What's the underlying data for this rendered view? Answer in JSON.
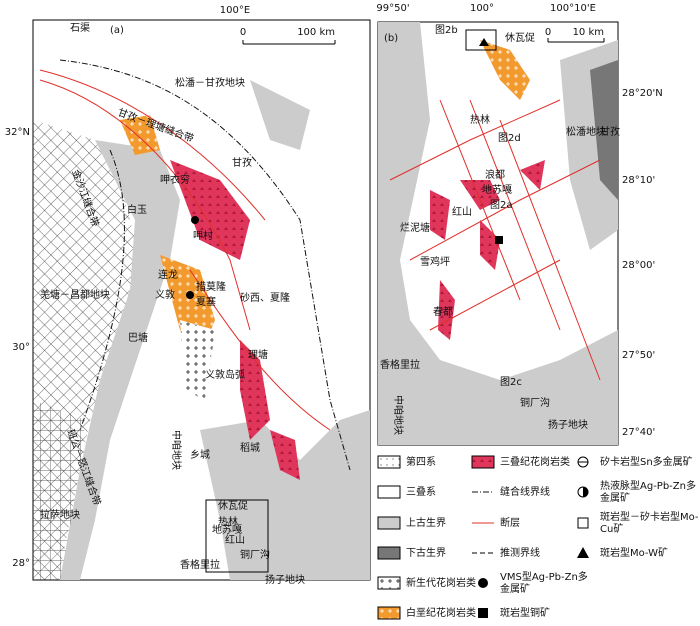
{
  "panel_a": {
    "label": "(a)",
    "lon_tick": "100°E",
    "lat_ticks": [
      "32°N",
      "30°",
      "28°"
    ],
    "scale": [
      "0",
      "100 km"
    ],
    "places": [
      "石渠",
      "松潘－甘孜地块",
      "甘孜－理塘缝合带",
      "金沙江缝合带",
      "白玉",
      "甘孜",
      "呷衣穷",
      "呷村",
      "连龙",
      "义敦",
      "措莫隆",
      "夏塞",
      "砂西、夏隆",
      "羌塘－昌都地块",
      "巴塘",
      "义敦岛弧",
      "理塘",
      "中咱地块",
      "乡城",
      "稻城",
      "休瓦促",
      "热林",
      "地苏嘎",
      "红山",
      "铜厂沟",
      "香格里拉",
      "扬子地块",
      "拉萨地块",
      "班公－怒江缝合带"
    ]
  },
  "panel_b": {
    "label": "(b)",
    "lon_ticks": [
      "99°50'",
      "100°",
      "100°10'E"
    ],
    "lat_ticks": [
      "28°20'N",
      "28°10'",
      "28°00'",
      "27°50'",
      "27°40'"
    ],
    "scale": [
      "0",
      "10 km"
    ],
    "places": [
      "图2b",
      "休瓦促",
      "热林",
      "图2d",
      "浪都",
      "地苏嘎",
      "图2a",
      "红山",
      "烂泥塘",
      "雪鸡坪",
      "春都",
      "松潘地块",
      "甘孜",
      "香格里拉",
      "中咱地块",
      "图2c",
      "铜厂沟",
      "扬子地块"
    ]
  },
  "legend": [
    [
      "第四系"
    ],
    [
      "三叠系"
    ],
    [
      "上古生界"
    ],
    [
      "下古生界"
    ],
    [
      "新生代花岗岩类"
    ],
    [
      "白垩纪花岗岩类"
    ],
    [
      "三叠纪花岗岩类"
    ],
    [
      "缝合线界线"
    ],
    [
      "断层"
    ],
    [
      "推测界线"
    ],
    [
      "VMS型Ag-Pb-Zn多",
      "金属矿"
    ],
    [
      "斑岩型铜矿"
    ],
    [
      "矽卡岩型Sn多金属矿"
    ],
    [
      "热液脉型Ag-Pb-Zn多",
      "金属矿"
    ],
    [
      "斑岩型－矽卡岩型Mo-",
      "Cu矿"
    ],
    [
      "斑岩型Mo-W矿"
    ]
  ]
}
